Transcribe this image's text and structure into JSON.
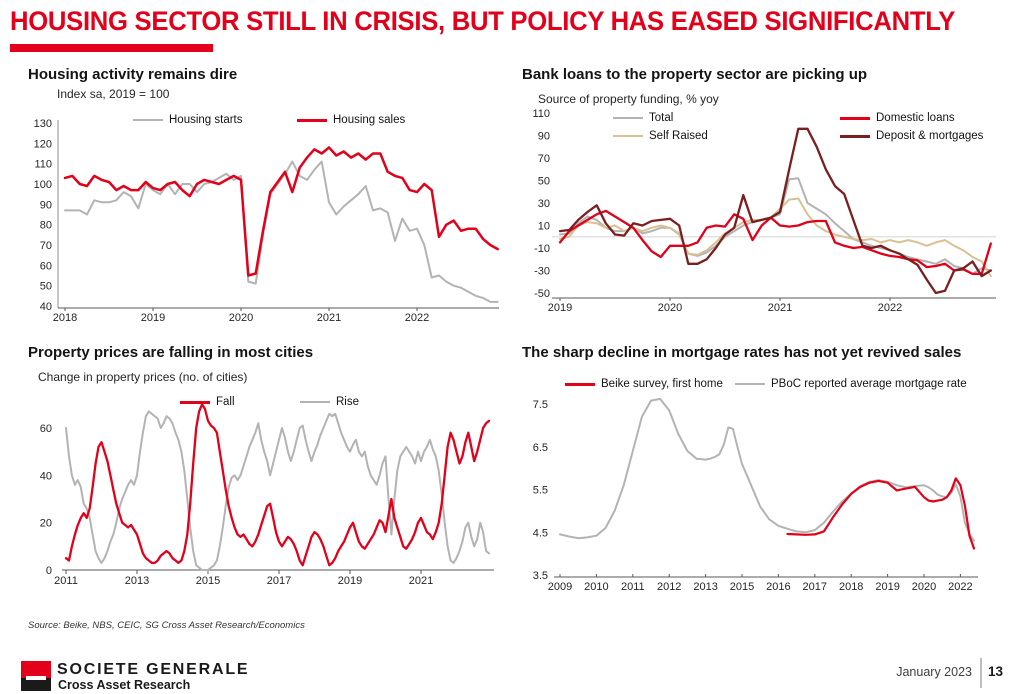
{
  "header": {
    "title": "HOUSING SECTOR STILL IN CRISIS, BUT POLICY HAS EASED SIGNIFICANTLY",
    "accent_color": "#e2001a"
  },
  "source_note": "Source: Beike, NBS, CEIC, SG Cross Asset Research/Economics",
  "footer": {
    "brand_name": "SOCIETE GENERALE",
    "brand_sub": "Cross Asset Research",
    "date": "January 2023",
    "page_number": "13"
  },
  "colors": {
    "accent_red": "#e2001a",
    "maroon": "#7a1f1f",
    "gray_line": "#b3b3b3",
    "tan_line": "#d8c294",
    "zero_line": "#d9d9d9"
  },
  "chart_data": [
    {
      "type": "line",
      "title": "Housing activity remains dire",
      "subtitle": "Index sa, 2019 = 100",
      "ylim": [
        40,
        130
      ],
      "yticks": [
        130,
        120,
        110,
        100,
        90,
        80,
        70,
        60,
        50,
        40
      ],
      "x_labels": [
        "2018",
        "2019",
        "2020",
        "2021",
        "2022"
      ],
      "x_label_years": [
        2018,
        2019,
        2020,
        2021,
        2022
      ],
      "legend_position": "top",
      "grid": false,
      "series": [
        {
          "name": "Housing starts",
          "color": "#b3b3b3",
          "x_start": 2018.0,
          "x_step": 0.083333,
          "values": [
            87,
            87,
            87,
            85,
            92,
            91,
            91,
            92,
            96,
            94,
            88,
            100,
            97,
            95,
            100,
            95,
            100,
            100,
            96,
            100,
            101,
            103,
            105,
            102,
            104,
            52,
            51,
            75,
            95,
            100,
            105,
            111,
            104,
            102,
            107,
            111,
            91,
            85,
            89,
            92,
            95,
            99,
            87,
            88,
            86,
            72,
            83,
            77,
            78,
            70,
            54,
            55,
            52,
            50,
            49,
            47,
            45,
            44,
            42,
            42
          ]
        },
        {
          "name": "Housing sales",
          "color": "#e2001a",
          "x_start": 2018.0,
          "x_step": 0.083333,
          "values": [
            103,
            104,
            100,
            99,
            104,
            102,
            101,
            97,
            99,
            97,
            97,
            101,
            98,
            97,
            100,
            101,
            97,
            94,
            100,
            102,
            101,
            100,
            102,
            104,
            102,
            55,
            56,
            77,
            96,
            101,
            106,
            96,
            108,
            113,
            117,
            115,
            118,
            114,
            116,
            113,
            115,
            112,
            115,
            115,
            106,
            104,
            103,
            97,
            96,
            100,
            97,
            74,
            80,
            82,
            77,
            78,
            78,
            73,
            70,
            68
          ]
        }
      ]
    },
    {
      "type": "line",
      "title": "Bank loans to the property sector are picking up",
      "subtitle": "Source of property funding, % yoy",
      "ylim": [
        -50,
        110
      ],
      "yticks": [
        110,
        90,
        70,
        50,
        30,
        10,
        -10,
        -30,
        -50
      ],
      "x_labels": [
        "2019",
        "2020",
        "2021",
        "2022"
      ],
      "x_label_years": [
        2019,
        2020,
        2021,
        2022
      ],
      "zero_line": true,
      "legend_position": "top",
      "grid": false,
      "series": [
        {
          "name": "Total",
          "color": "#b3b3b3",
          "x_start": 2019.0,
          "x_step": 0.083333,
          "values": [
            2,
            3,
            12,
            18,
            15,
            8,
            5,
            5,
            8,
            3,
            5,
            8,
            8,
            2,
            -15,
            -17,
            -14,
            -8,
            0,
            5,
            10,
            13,
            15,
            17,
            20,
            51,
            52,
            30,
            25,
            20,
            12,
            5,
            -2,
            -5,
            -8,
            -10,
            -12,
            -15,
            -18,
            -20,
            -22,
            -24,
            -20,
            -26,
            -28,
            -33,
            -28,
            -30
          ]
        },
        {
          "name": "Self Raised",
          "color": "#d8c294",
          "x_start": 2019.0,
          "x_step": 0.083333,
          "values": [
            -2,
            0,
            10,
            13,
            12,
            8,
            10,
            5,
            8,
            5,
            8,
            10,
            8,
            3,
            -15,
            -16,
            -12,
            -5,
            3,
            8,
            13,
            15,
            15,
            17,
            25,
            33,
            34,
            20,
            10,
            5,
            2,
            0,
            -2,
            -3,
            -2,
            -5,
            -3,
            -5,
            -3,
            -5,
            -8,
            -5,
            -3,
            -8,
            -12,
            -18,
            -22,
            -35
          ]
        },
        {
          "name": "Domestic loans",
          "color": "#e2001a",
          "x_start": 2019.0,
          "x_step": 0.083333,
          "values": [
            -5,
            5,
            10,
            15,
            20,
            23,
            18,
            13,
            8,
            -3,
            -13,
            -18,
            -8,
            -8,
            -8,
            -5,
            8,
            10,
            9,
            20,
            16,
            -3,
            10,
            17,
            10,
            9,
            10,
            13,
            14,
            14,
            -5,
            -8,
            -10,
            -9,
            -12,
            -15,
            -17,
            -18,
            -20,
            -21,
            -27,
            -26,
            -24,
            -30,
            -29,
            -33,
            -33,
            -6
          ]
        },
        {
          "name": "Deposit & mortgages",
          "color": "#7a1f1f",
          "x_start": 2019.0,
          "x_step": 0.083333,
          "values": [
            5,
            6,
            15,
            22,
            28,
            12,
            2,
            1,
            12,
            10,
            14,
            15,
            16,
            10,
            -24,
            -24,
            -20,
            -10,
            2,
            8,
            37,
            13,
            15,
            17,
            22,
            60,
            96,
            96,
            80,
            60,
            45,
            38,
            15,
            -8,
            -10,
            -8,
            -12,
            -15,
            -20,
            -25,
            -38,
            -50,
            -48,
            -30,
            -28,
            -22,
            -35,
            -30
          ]
        }
      ]
    },
    {
      "type": "line",
      "title": "Property prices are falling in most cities",
      "subtitle": "Change in property prices (no. of cities)",
      "ylim": [
        0,
        60
      ],
      "yticks": [
        60,
        40,
        20,
        0
      ],
      "x_labels": [
        "2011",
        "2013",
        "2015",
        "2017",
        "2019",
        "2021"
      ],
      "x_label_years": [
        2011,
        2013,
        2015,
        2017,
        2019,
        2021
      ],
      "legend_position": "top",
      "grid": false,
      "series": [
        {
          "name": "Fall",
          "color": "#e2001a",
          "x_start": 2011.0,
          "x_step": 0.083333,
          "values": [
            5,
            4,
            10,
            15,
            19,
            22,
            24,
            22,
            26,
            35,
            45,
            52,
            54,
            50,
            46,
            40,
            34,
            28,
            24,
            20,
            19,
            18,
            19,
            17,
            15,
            11,
            7,
            5,
            4,
            3,
            3,
            4,
            6,
            7,
            8,
            7,
            5,
            4,
            3,
            4,
            8,
            15,
            28,
            45,
            60,
            67,
            70,
            68,
            63,
            61,
            60,
            58,
            50,
            42,
            34,
            27,
            22,
            18,
            15,
            14,
            15,
            13,
            11,
            10,
            12,
            15,
            19,
            23,
            27,
            28,
            22,
            16,
            12,
            10,
            12,
            14,
            13,
            11,
            8,
            4,
            2,
            6,
            10,
            14,
            16,
            15,
            13,
            10,
            6,
            2,
            3,
            5,
            8,
            10,
            12,
            15,
            18,
            20,
            16,
            12,
            10,
            9,
            11,
            13,
            15,
            18,
            21,
            20,
            16,
            23,
            30,
            22,
            18,
            14,
            10,
            9,
            11,
            13,
            16,
            20,
            22,
            19,
            16,
            15,
            13,
            16,
            20,
            28,
            40,
            52,
            58,
            55,
            50,
            45,
            48,
            54,
            58,
            52,
            46,
            50,
            55,
            60,
            62,
            63
          ]
        },
        {
          "name": "Rise",
          "color": "#b3b3b3",
          "x_start": 2011.0,
          "x_step": 0.083333,
          "values": [
            60,
            48,
            40,
            36,
            38,
            35,
            28,
            26,
            22,
            15,
            8,
            5,
            3,
            5,
            8,
            12,
            15,
            20,
            26,
            30,
            33,
            36,
            38,
            36,
            40,
            50,
            58,
            65,
            67,
            66,
            65,
            64,
            60,
            62,
            65,
            64,
            62,
            58,
            55,
            50,
            42,
            30,
            18,
            8,
            2,
            1,
            0,
            0,
            0,
            1,
            2,
            4,
            10,
            18,
            27,
            35,
            39,
            40,
            38,
            40,
            44,
            48,
            52,
            55,
            58,
            62,
            55,
            50,
            46,
            40,
            45,
            50,
            55,
            60,
            56,
            50,
            46,
            50,
            55,
            60,
            61,
            55,
            50,
            46,
            50,
            53,
            57,
            60,
            63,
            66,
            65,
            66,
            62,
            58,
            55,
            52,
            50,
            53,
            55,
            50,
            48,
            50,
            44,
            40,
            38,
            36,
            40,
            45,
            48,
            30,
            15,
            30,
            42,
            48,
            50,
            52,
            50,
            48,
            45,
            50,
            46,
            50,
            52,
            55,
            51,
            48,
            42,
            32,
            20,
            10,
            4,
            3,
            5,
            8,
            12,
            18,
            20,
            14,
            10,
            13,
            20,
            16,
            8,
            7
          ]
        }
      ]
    },
    {
      "type": "line",
      "title": "The sharp decline in mortgage rates has not yet revived sales",
      "subtitle": "",
      "ylim": [
        3.5,
        7.5
      ],
      "yticks": [
        7.5,
        6.5,
        5.5,
        4.5,
        3.5
      ],
      "x_labels": [
        "2009",
        "2010",
        "2011",
        "2012",
        "2013",
        "2015",
        "2016",
        "2017",
        "2018",
        "2019",
        "2020",
        "2022"
      ],
      "x_label_years": [
        2009,
        2010,
        2011,
        2012,
        2013,
        2015,
        2016,
        2017,
        2018,
        2019,
        2020,
        2022
      ],
      "legend_position": "top",
      "grid": false,
      "series": [
        {
          "name": "Beike survey, first home",
          "color": "#e2001a",
          "x_start": 2016.25,
          "x_step": 0.25,
          "values": [
            4.46,
            4.45,
            4.44,
            4.45,
            4.52,
            4.85,
            5.15,
            5.4,
            5.56,
            5.66,
            5.7,
            5.66,
            5.48,
            5.52,
            5.56,
            5.32,
            5.24,
            5.22,
            5.24,
            5.26,
            5.32,
            5.48,
            5.76,
            5.6,
            5.12,
            4.42,
            4.12
          ]
        },
        {
          "name": "PBoC reported average mortgage rate",
          "color": "#b3b3b3",
          "x_start": 2009.0,
          "x_step": 0.25,
          "values": [
            4.45,
            4.4,
            4.36,
            4.38,
            4.42,
            4.6,
            5.0,
            5.6,
            6.4,
            7.2,
            7.58,
            7.62,
            7.35,
            6.8,
            6.4,
            6.22,
            6.2,
            6.22,
            6.26,
            6.32,
            6.55,
            6.95,
            6.92,
            6.5,
            6.1,
            5.6,
            5.1,
            4.8,
            4.65,
            4.58,
            4.52,
            4.5,
            4.55,
            4.72,
            4.98,
            5.22,
            5.4,
            5.58,
            5.68,
            5.72,
            5.68,
            5.6,
            5.55,
            5.58,
            5.6,
            5.55,
            5.48,
            5.38,
            5.34,
            5.32,
            5.42,
            5.62,
            5.34,
            4.72,
            4.46,
            4.3
          ]
        }
      ]
    }
  ]
}
